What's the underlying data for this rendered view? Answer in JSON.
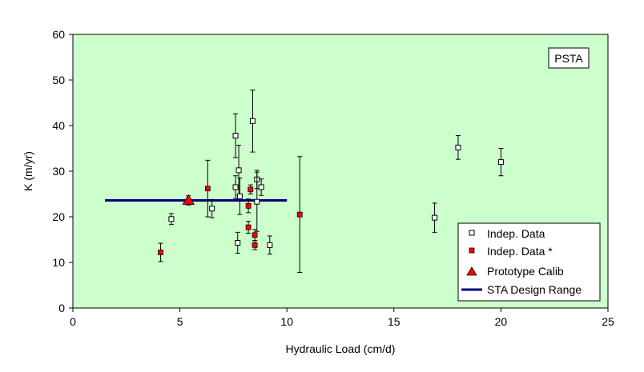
{
  "chart_data": {
    "type": "scatter",
    "title": "",
    "xlabel": "Hydraulic Load (cm/d)",
    "ylabel": "K (m/yr)",
    "xlim": [
      0,
      25
    ],
    "ylim": [
      0,
      60
    ],
    "x_ticks": [
      "0",
      "5",
      "10",
      "15",
      "20",
      "25"
    ],
    "y_ticks": [
      "0",
      "10",
      "20",
      "30",
      "40",
      "50",
      "60"
    ],
    "grid": false,
    "annotation": "PSTA",
    "legend_position": "bottom-right",
    "colors": {
      "plot_background": "#ccffcc",
      "indep_fill": "#ffffff",
      "indep_star_fill": "#ff0000",
      "triangle_fill": "#ff0000",
      "design_line": "#000080",
      "axis": "#000000"
    },
    "series": [
      {
        "name": "Indep. Data",
        "marker": "open-square",
        "points": [
          {
            "x": 4.6,
            "y": 19.5,
            "err": 1.2
          },
          {
            "x": 6.5,
            "y": 21.8,
            "err": 2.0
          },
          {
            "x": 7.6,
            "y": 37.8,
            "err": 4.8
          },
          {
            "x": 7.6,
            "y": 26.5,
            "err": 2.5
          },
          {
            "x": 7.7,
            "y": 14.3,
            "err": 2.3
          },
          {
            "x": 7.75,
            "y": 30.2,
            "err": 5.5
          },
          {
            "x": 7.8,
            "y": 24.5,
            "err": 4.0
          },
          {
            "x": 8.4,
            "y": 41.0,
            "err": 6.8
          },
          {
            "x": 8.6,
            "y": 28.2,
            "err": 2.0
          },
          {
            "x": 8.6,
            "y": 23.3,
            "err": 6.5
          },
          {
            "x": 8.8,
            "y": 26.5,
            "err": 1.8
          },
          {
            "x": 9.2,
            "y": 13.8,
            "err": 2.0
          },
          {
            "x": 16.9,
            "y": 19.8,
            "err": 3.2
          },
          {
            "x": 18.0,
            "y": 35.2,
            "err": 2.6
          },
          {
            "x": 20.0,
            "y": 32.0,
            "err": 3.0
          }
        ]
      },
      {
        "name": "Indep. Data *",
        "marker": "filled-square",
        "points": [
          {
            "x": 4.1,
            "y": 12.2,
            "err": 2.0
          },
          {
            "x": 6.3,
            "y": 26.2,
            "err": 6.2
          },
          {
            "x": 8.2,
            "y": 22.4,
            "err": 1.5
          },
          {
            "x": 8.2,
            "y": 17.7,
            "err": 1.3
          },
          {
            "x": 8.3,
            "y": 26.0,
            "err": 1.0
          },
          {
            "x": 8.5,
            "y": 16.0,
            "err": 1.2
          },
          {
            "x": 8.5,
            "y": 13.8,
            "err": 1.0
          },
          {
            "x": 10.6,
            "y": 20.5,
            "err": 12.7
          }
        ]
      },
      {
        "name": "Prototype Calib",
        "marker": "triangle",
        "points": [
          {
            "x": 5.4,
            "y": 23.6,
            "err": 1.0
          }
        ]
      },
      {
        "name": "STA Design Range",
        "marker": "line",
        "x": [
          1.5,
          10.0
        ],
        "y": [
          23.6,
          23.6
        ]
      }
    ]
  }
}
